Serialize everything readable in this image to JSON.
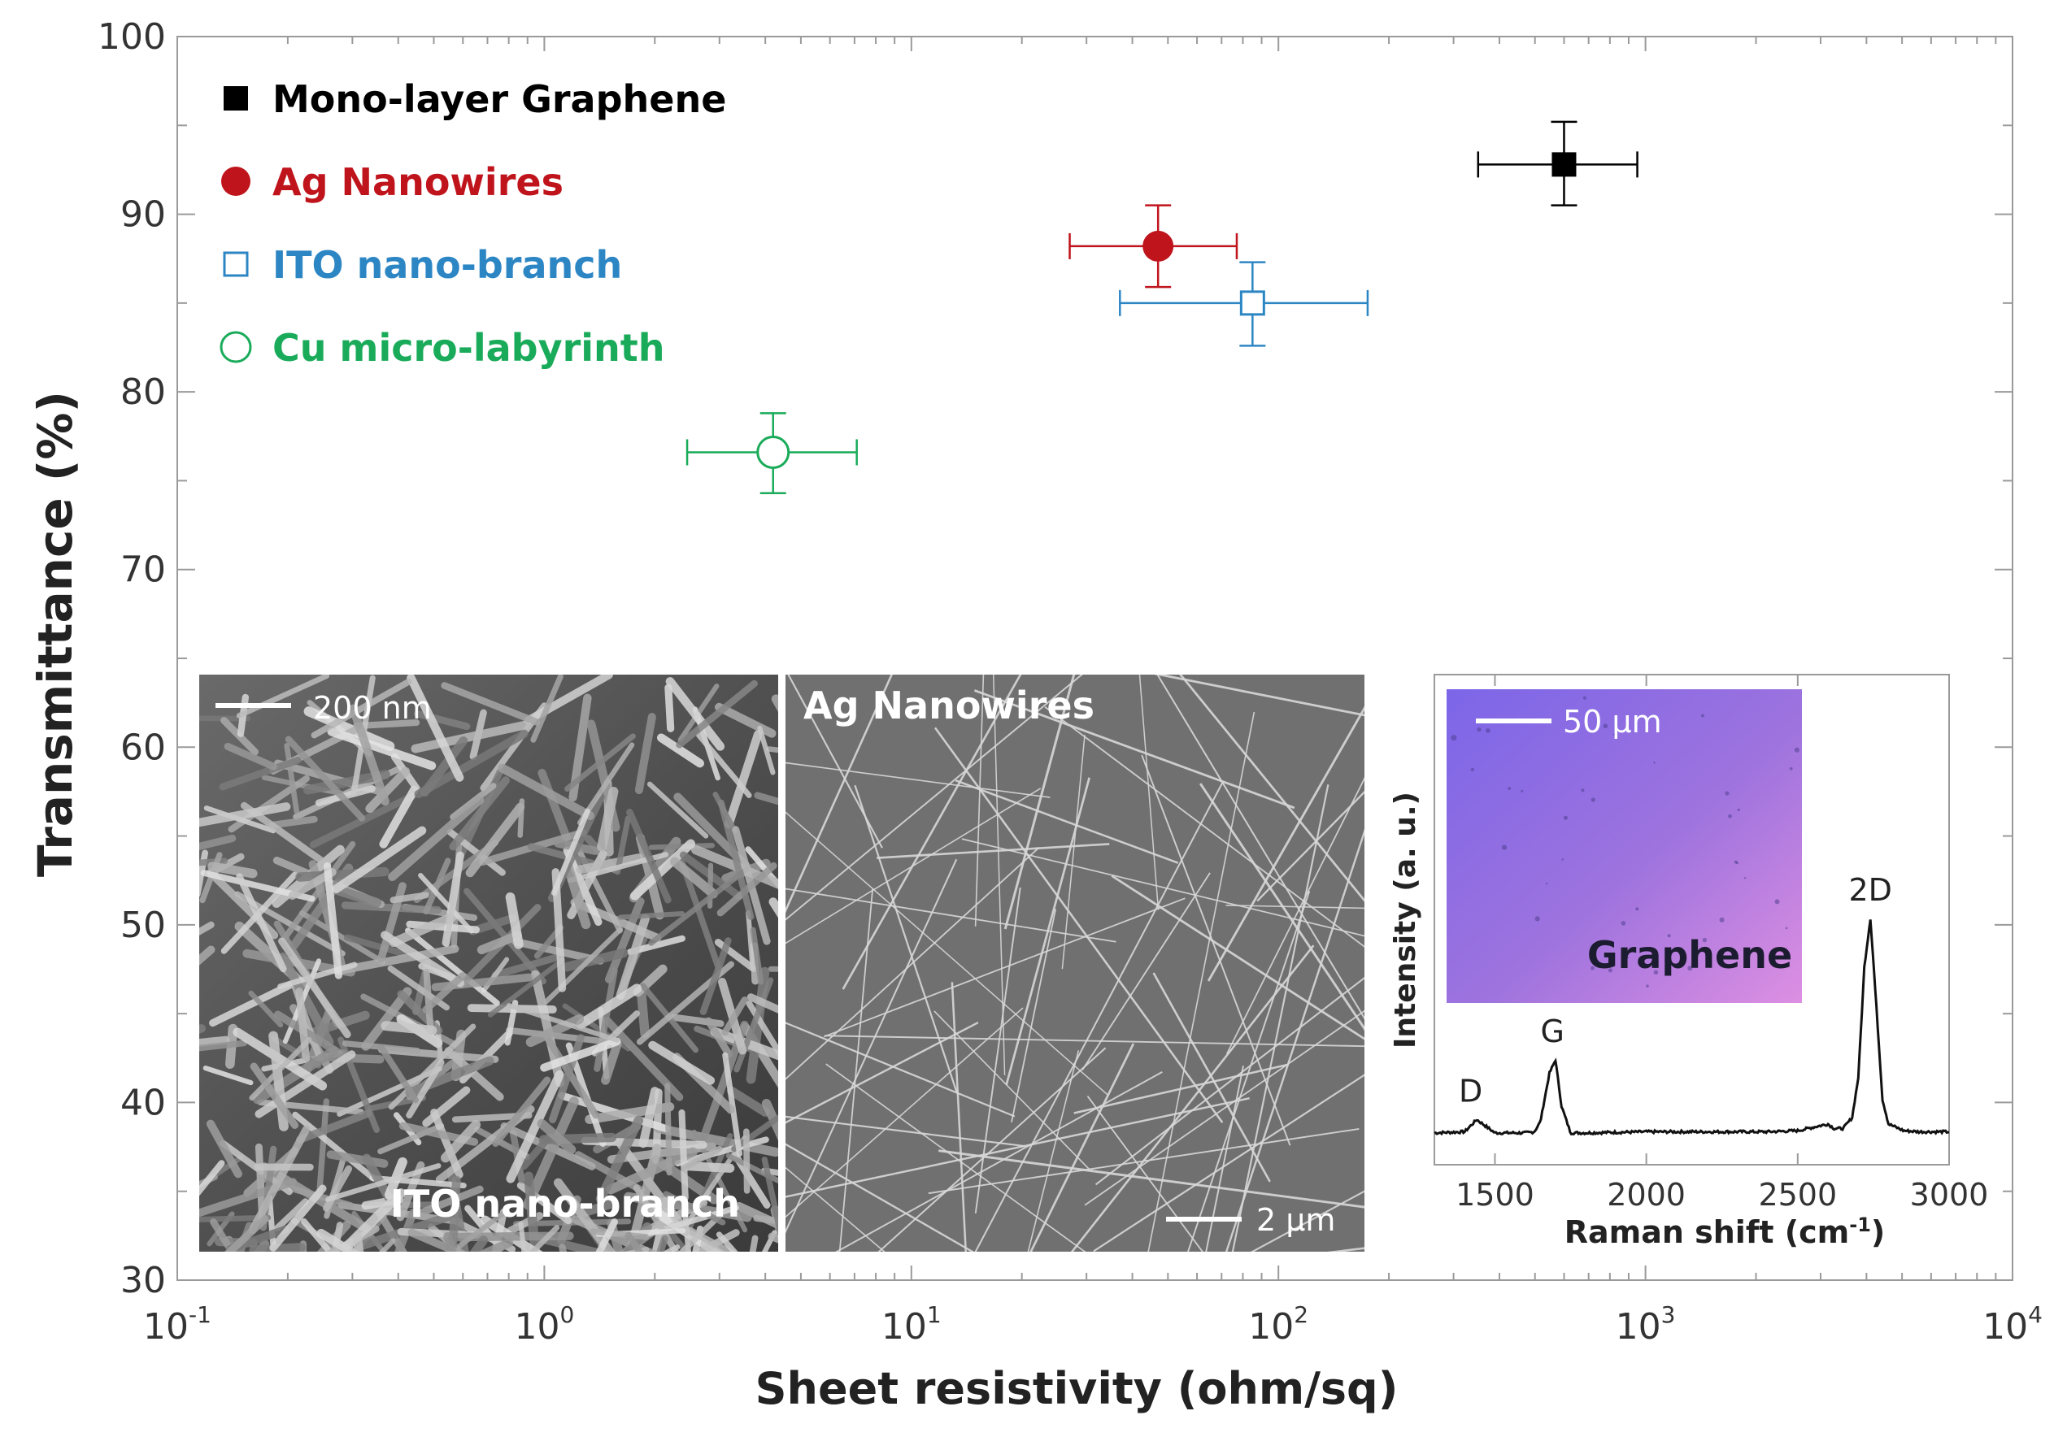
{
  "chart_data": [
    {
      "type": "scatter",
      "xlabel": "Sheet resistivity (ohm/sq)",
      "ylabel": "Transmittance (%)",
      "x_scale": "log",
      "xlim": [
        0.1,
        10000
      ],
      "ylim": [
        30,
        100
      ],
      "x_ticks": [
        {
          "value": 0.1,
          "base": "10",
          "exp": "-1"
        },
        {
          "value": 1,
          "base": "10",
          "exp": "0"
        },
        {
          "value": 10,
          "base": "10",
          "exp": "1"
        },
        {
          "value": 100,
          "base": "10",
          "exp": "2"
        },
        {
          "value": 1000,
          "base": "10",
          "exp": "3"
        },
        {
          "value": 10000,
          "base": "10",
          "exp": "4"
        }
      ],
      "y_ticks": [
        "30",
        "40",
        "50",
        "60",
        "70",
        "80",
        "90",
        "100"
      ],
      "legend_position": "top-left",
      "grid": false,
      "series": [
        {
          "name": "Mono-layer Graphene",
          "color": "#000000",
          "marker": "filled-square",
          "x": 600,
          "x_err": [
            350,
            950
          ],
          "y": 92.8,
          "y_err": [
            90.5,
            95.2
          ]
        },
        {
          "name": "Ag Nanowires",
          "color": "#c0141c",
          "marker": "filled-circle",
          "x": 47,
          "x_err": [
            27,
            77
          ],
          "y": 88.2,
          "y_err": [
            85.9,
            90.5
          ]
        },
        {
          "name": "ITO nano-branch",
          "color": "#2d86c4",
          "marker": "open-square",
          "x": 85,
          "x_err": [
            37,
            175
          ],
          "y": 85.0,
          "y_err": [
            82.6,
            87.3
          ]
        },
        {
          "name": "Cu micro-labyrinth",
          "color": "#1aab5a",
          "marker": "open-circle",
          "x": 4.2,
          "x_err": [
            2.45,
            7.1
          ],
          "y": 76.6,
          "y_err": [
            74.3,
            78.8
          ]
        }
      ]
    },
    {
      "type": "line",
      "xlabel": "Raman shift (cm",
      "xlabel_sup": "-1",
      "xlabel_end": ")",
      "ylabel": "Intensity (a. u.)",
      "xlim": [
        1300,
        3000
      ],
      "x_ticks": [
        "1500",
        "2000",
        "2500",
        "3000"
      ],
      "series": [
        {
          "x": [
            1300,
            1400,
            1440,
            1500,
            1600,
            1630,
            1650,
            1680,
            1700,
            1720,
            1750,
            1800,
            2000,
            2200,
            2400,
            2500,
            2600,
            2620,
            2650,
            2680,
            2700,
            2720,
            2740,
            2760,
            2780,
            2800,
            2850,
            2900,
            3000
          ],
          "y": [
            0.03,
            0.035,
            0.09,
            0.03,
            0.03,
            0.035,
            0.08,
            0.3,
            0.36,
            0.15,
            0.03,
            0.03,
            0.035,
            0.035,
            0.035,
            0.04,
            0.07,
            0.05,
            0.05,
            0.1,
            0.28,
            0.78,
            1.0,
            0.6,
            0.18,
            0.07,
            0.04,
            0.035,
            0.035
          ]
        }
      ],
      "annotations": [
        {
          "text": "D",
          "x": 1420,
          "y": 0.09
        },
        {
          "text": "G",
          "x": 1690,
          "y": 0.36
        },
        {
          "text": "2D",
          "x": 2740,
          "y": 1.0
        }
      ]
    }
  ],
  "insets": {
    "ito": {
      "label": "ITO nano-branch",
      "scale_bar": "200 nm"
    },
    "ag": {
      "label": "Ag Nanowires",
      "scale_bar": "2 μm"
    },
    "graphene": {
      "label": "Graphene",
      "scale_bar": "50 μm"
    }
  },
  "colors": {
    "axis": "#888888",
    "text": "#222222",
    "sem_background": "#6e6e6e",
    "optical_background": "#9a72e0"
  }
}
